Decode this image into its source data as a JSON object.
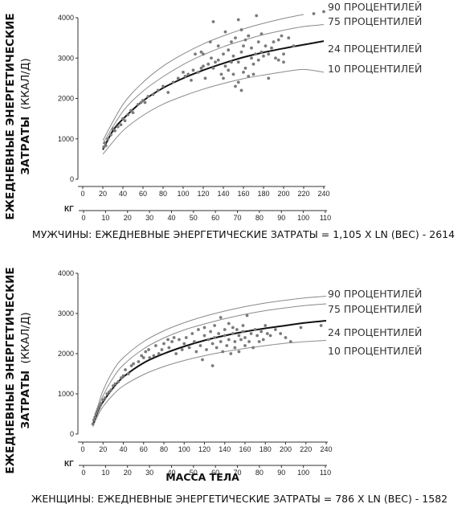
{
  "chart_data": [
    {
      "type": "scatter",
      "title": "",
      "caption": "МУЖЧИНЫ: ЕЖЕДНЕВНЫЕ ЭНЕРГЕТИЧЕСКИЕ ЗАТРАТЫ = 1,105 X LN (ВЕС) - 2614",
      "xlabel": "",
      "ylabel_line1": "ЕЖЕДНЕВНЫЕ ЭНЕРГЕТИЧЕСКИЕ",
      "ylabel_line2": "ЗАТРАТЫ",
      "ylabel_unit": "(ККАЛ/Д)",
      "secondary_axis_label": "КГ",
      "xlim": [
        0,
        240
      ],
      "ylim": [
        0,
        4000
      ],
      "x_ticks": [
        0,
        20,
        40,
        60,
        80,
        100,
        120,
        140,
        160,
        180,
        200,
        220,
        240
      ],
      "y_ticks": [
        0,
        1000,
        2000,
        3000,
        4000
      ],
      "kg_ticks": [
        0,
        10,
        20,
        30,
        40,
        50,
        60,
        70,
        80,
        90,
        100,
        110
      ],
      "curves": [
        {
          "name": "90 ПРОЦЕНТИЛЕЙ",
          "points": [
            [
              20,
              960
            ],
            [
              40,
              1850
            ],
            [
              60,
              2400
            ],
            [
              80,
              2800
            ],
            [
              100,
              3100
            ],
            [
              120,
              3350
            ],
            [
              140,
              3550
            ],
            [
              160,
              3720
            ],
            [
              180,
              3860
            ],
            [
              200,
              3980
            ],
            [
              220,
              4080
            ]
          ]
        },
        {
          "name": "75 ПРОЦЕНТИЛЕЙ",
          "points": [
            [
              20,
              880
            ],
            [
              40,
              1680
            ],
            [
              60,
              2180
            ],
            [
              80,
              2540
            ],
            [
              100,
              2840
            ],
            [
              120,
              3080
            ],
            [
              140,
              3280
            ],
            [
              160,
              3440
            ],
            [
              180,
              3580
            ],
            [
              200,
              3690
            ],
            [
              220,
              3780
            ],
            [
              240,
              3830
            ]
          ]
        },
        {
          "name": "24 ПРОЦЕНТИЛЕЙ",
          "points": [
            [
              20,
              730
            ],
            [
              30,
              1200
            ],
            [
              40,
              1490
            ],
            [
              60,
              1940
            ],
            [
              80,
              2260
            ],
            [
              100,
              2500
            ],
            [
              120,
              2700
            ],
            [
              140,
              2870
            ],
            [
              160,
              3020
            ],
            [
              180,
              3140
            ],
            [
              200,
              3240
            ],
            [
              220,
              3330
            ],
            [
              240,
              3420
            ]
          ]
        },
        {
          "name": "10 ПРОЦЕНТИЛЕЙ",
          "points": [
            [
              20,
              620
            ],
            [
              40,
              1200
            ],
            [
              60,
              1580
            ],
            [
              80,
              1860
            ],
            [
              100,
              2060
            ],
            [
              120,
              2230
            ],
            [
              140,
              2370
            ],
            [
              160,
              2490
            ],
            [
              180,
              2580
            ],
            [
              200,
              2660
            ],
            [
              220,
              2720
            ],
            [
              240,
              2650
            ]
          ]
        }
      ],
      "fit_curve": "24 ПРОЦЕНТИЛЕЙ",
      "points": [
        [
          21,
          800
        ],
        [
          22,
          900
        ],
        [
          23,
          830
        ],
        [
          25,
          1000
        ],
        [
          28,
          1100
        ],
        [
          30,
          1250
        ],
        [
          32,
          1200
        ],
        [
          35,
          1300
        ],
        [
          38,
          1350
        ],
        [
          40,
          1500
        ],
        [
          42,
          1450
        ],
        [
          45,
          1600
        ],
        [
          48,
          1700
        ],
        [
          50,
          1650
        ],
        [
          55,
          1850
        ],
        [
          58,
          1900
        ],
        [
          60,
          1950
        ],
        [
          62,
          1900
        ],
        [
          65,
          2050
        ],
        [
          70,
          2100
        ],
        [
          75,
          2200
        ],
        [
          80,
          2300
        ],
        [
          85,
          2150
        ],
        [
          90,
          2400
        ],
        [
          95,
          2500
        ],
        [
          100,
          2650
        ],
        [
          102,
          2550
        ],
        [
          105,
          2600
        ],
        [
          110,
          2700
        ],
        [
          115,
          2650
        ],
        [
          118,
          2750
        ],
        [
          120,
          2800
        ],
        [
          120,
          3100
        ],
        [
          122,
          2500
        ],
        [
          125,
          2850
        ],
        [
          128,
          3000
        ],
        [
          130,
          2750
        ],
        [
          132,
          2900
        ],
        [
          135,
          2950
        ],
        [
          135,
          3300
        ],
        [
          138,
          2600
        ],
        [
          140,
          3100
        ],
        [
          140,
          2500
        ],
        [
          142,
          2800
        ],
        [
          145,
          3200
        ],
        [
          145,
          2700
        ],
        [
          148,
          3400
        ],
        [
          148,
          2900
        ],
        [
          150,
          2600
        ],
        [
          150,
          3050
        ],
        [
          152,
          2300
        ],
        [
          152,
          3500
        ],
        [
          155,
          2400
        ],
        [
          155,
          2900
        ],
        [
          158,
          3150
        ],
        [
          158,
          2200
        ],
        [
          160,
          3300
        ],
        [
          160,
          2650
        ],
        [
          162,
          3450
        ],
        [
          162,
          2750
        ],
        [
          165,
          3550
        ],
        [
          165,
          2550
        ],
        [
          168,
          3000
        ],
        [
          168,
          3250
        ],
        [
          170,
          2600
        ],
        [
          170,
          2850
        ],
        [
          172,
          3100
        ],
        [
          175,
          3400
        ],
        [
          175,
          2950
        ],
        [
          178,
          3150
        ],
        [
          178,
          3600
        ],
        [
          180,
          3050
        ],
        [
          182,
          3300
        ],
        [
          185,
          2500
        ],
        [
          185,
          3100
        ],
        [
          188,
          3250
        ],
        [
          190,
          3400
        ],
        [
          192,
          3000
        ],
        [
          195,
          2950
        ],
        [
          195,
          3450
        ],
        [
          198,
          3550
        ],
        [
          200,
          3100
        ],
        [
          200,
          2900
        ],
        [
          205,
          3500
        ],
        [
          210,
          3300
        ],
        [
          130,
          3900
        ],
        [
          155,
          3950
        ],
        [
          173,
          4050
        ],
        [
          230,
          4100
        ],
        [
          240,
          4150
        ],
        [
          142,
          3650
        ],
        [
          158,
          3700
        ],
        [
          165,
          3550
        ],
        [
          127,
          3400
        ],
        [
          118,
          3150
        ],
        [
          112,
          3100
        ],
        [
          108,
          2450
        ]
      ]
    },
    {
      "type": "scatter",
      "title": "",
      "caption": "ЖЕНЩИНЫ: ЕЖЕДНЕВНЫЕ ЭНЕРГЕТИЧЕСКИЕ ЗАТРАТЫ = 786 X LN (ВЕС) - 1582",
      "xlabel": "МАССА ТЕЛА",
      "ylabel_line1": "ЕЖЕДНЕВНЫЕ ЭНЕРГЕТИЧЕСКИЕ",
      "ylabel_line2": "ЗАТРАТЫ",
      "ylabel_unit": "(ККАЛ/Д)",
      "secondary_axis_label": "КГ",
      "xlim": [
        0,
        240
      ],
      "ylim": [
        0,
        4000
      ],
      "x_ticks": [
        0,
        20,
        40,
        60,
        80,
        100,
        120,
        140,
        160,
        180,
        200,
        220,
        240
      ],
      "y_ticks": [
        0,
        1000,
        2000,
        3000,
        4000
      ],
      "kg_ticks": [
        0,
        10,
        20,
        30,
        40,
        50,
        60,
        70,
        80,
        90,
        100,
        110
      ],
      "curves": [
        {
          "name": "90 ПРОЦЕНТИЛЕЙ",
          "points": [
            [
              10,
              280
            ],
            [
              15,
              700
            ],
            [
              20,
              1080
            ],
            [
              30,
              1580
            ],
            [
              40,
              1900
            ],
            [
              60,
              2300
            ],
            [
              80,
              2570
            ],
            [
              100,
              2770
            ],
            [
              120,
              2930
            ],
            [
              140,
              3060
            ],
            [
              160,
              3170
            ],
            [
              180,
              3260
            ],
            [
              200,
              3330
            ],
            [
              220,
              3390
            ],
            [
              240,
              3430
            ]
          ]
        },
        {
          "name": "75 ПРОЦЕНТИЛЕЙ",
          "points": [
            [
              10,
              260
            ],
            [
              15,
              640
            ],
            [
              20,
              950
            ],
            [
              30,
              1400
            ],
            [
              40,
              1720
            ],
            [
              60,
              2120
            ],
            [
              80,
              2390
            ],
            [
              100,
              2590
            ],
            [
              120,
              2740
            ],
            [
              140,
              2870
            ],
            [
              160,
              2980
            ],
            [
              180,
              3070
            ],
            [
              200,
              3140
            ],
            [
              220,
              3200
            ],
            [
              240,
              3240
            ]
          ]
        },
        {
          "name": "24 ПРОЦЕНТИЛЕЙ",
          "points": [
            [
              10,
              220
            ],
            [
              15,
              560
            ],
            [
              20,
              800
            ],
            [
              30,
              1150
            ],
            [
              40,
              1420
            ],
            [
              60,
              1770
            ],
            [
              80,
              2000
            ],
            [
              100,
              2180
            ],
            [
              120,
              2330
            ],
            [
              140,
              2450
            ],
            [
              160,
              2550
            ],
            [
              180,
              2630
            ],
            [
              200,
              2700
            ],
            [
              220,
              2770
            ],
            [
              240,
              2820
            ]
          ]
        },
        {
          "name": "10 ПРОЦЕНТИЛЕЙ",
          "points": [
            [
              10,
              180
            ],
            [
              15,
              470
            ],
            [
              20,
              680
            ],
            [
              30,
              980
            ],
            [
              40,
              1200
            ],
            [
              60,
              1480
            ],
            [
              80,
              1680
            ],
            [
              100,
              1830
            ],
            [
              120,
              1950
            ],
            [
              140,
              2050
            ],
            [
              160,
              2130
            ],
            [
              180,
              2200
            ],
            [
              200,
              2260
            ],
            [
              220,
              2300
            ],
            [
              240,
              2330
            ]
          ]
        }
      ],
      "fit_curve": "24 ПРОЦЕНТИЛЕЙ",
      "points": [
        [
          10,
          250
        ],
        [
          11,
          350
        ],
        [
          12,
          420
        ],
        [
          13,
          500
        ],
        [
          14,
          560
        ],
        [
          15,
          620
        ],
        [
          16,
          680
        ],
        [
          17,
          700
        ],
        [
          18,
          760
        ],
        [
          20,
          850
        ],
        [
          22,
          900
        ],
        [
          24,
          1000
        ],
        [
          26,
          1050
        ],
        [
          28,
          1100
        ],
        [
          30,
          1200
        ],
        [
          32,
          1250
        ],
        [
          35,
          1300
        ],
        [
          38,
          1400
        ],
        [
          40,
          1450
        ],
        [
          42,
          1600
        ],
        [
          45,
          1500
        ],
        [
          48,
          1700
        ],
        [
          50,
          1750
        ],
        [
          55,
          1800
        ],
        [
          58,
          1950
        ],
        [
          60,
          1900
        ],
        [
          62,
          2050
        ],
        [
          65,
          2100
        ],
        [
          70,
          1950
        ],
        [
          72,
          2200
        ],
        [
          75,
          2000
        ],
        [
          78,
          2100
        ],
        [
          80,
          2250
        ],
        [
          85,
          2150
        ],
        [
          88,
          2300
        ],
        [
          90,
          2400
        ],
        [
          92,
          2000
        ],
        [
          95,
          2350
        ],
        [
          98,
          2100
        ],
        [
          100,
          2250
        ],
        [
          102,
          2400
        ],
        [
          105,
          2150
        ],
        [
          108,
          2500
        ],
        [
          110,
          2300
        ],
        [
          112,
          2050
        ],
        [
          114,
          2600
        ],
        [
          116,
          2200
        ],
        [
          118,
          1850
        ],
        [
          120,
          2450
        ],
        [
          120,
          2650
        ],
        [
          122,
          2100
        ],
        [
          124,
          2350
        ],
        [
          126,
          2550
        ],
        [
          128,
          1700
        ],
        [
          128,
          2250
        ],
        [
          130,
          2700
        ],
        [
          130,
          2400
        ],
        [
          132,
          2150
        ],
        [
          134,
          2500
        ],
        [
          136,
          2900
        ],
        [
          136,
          2300
        ],
        [
          138,
          2050
        ],
        [
          140,
          2450
        ],
        [
          140,
          2600
        ],
        [
          142,
          2200
        ],
        [
          144,
          2750
        ],
        [
          144,
          2350
        ],
        [
          146,
          2000
        ],
        [
          148,
          2500
        ],
        [
          148,
          2650
        ],
        [
          150,
          2300
        ],
        [
          150,
          2150
        ],
        [
          152,
          2600
        ],
        [
          154,
          2450
        ],
        [
          154,
          2050
        ],
        [
          156,
          2350
        ],
        [
          158,
          2550
        ],
        [
          158,
          2700
        ],
        [
          160,
          2200
        ],
        [
          160,
          2400
        ],
        [
          162,
          2950
        ],
        [
          164,
          2300
        ],
        [
          166,
          2500
        ],
        [
          168,
          2150
        ],
        [
          170,
          2600
        ],
        [
          172,
          2450
        ],
        [
          174,
          2300
        ],
        [
          176,
          2550
        ],
        [
          178,
          2350
        ],
        [
          180,
          2700
        ],
        [
          182,
          2500
        ],
        [
          185,
          2450
        ],
        [
          190,
          2600
        ],
        [
          195,
          2500
        ],
        [
          200,
          2400
        ],
        [
          205,
          2300
        ],
        [
          215,
          2650
        ],
        [
          235,
          2700
        ],
        [
          66,
          1900
        ],
        [
          84,
          2350
        ]
      ]
    }
  ]
}
